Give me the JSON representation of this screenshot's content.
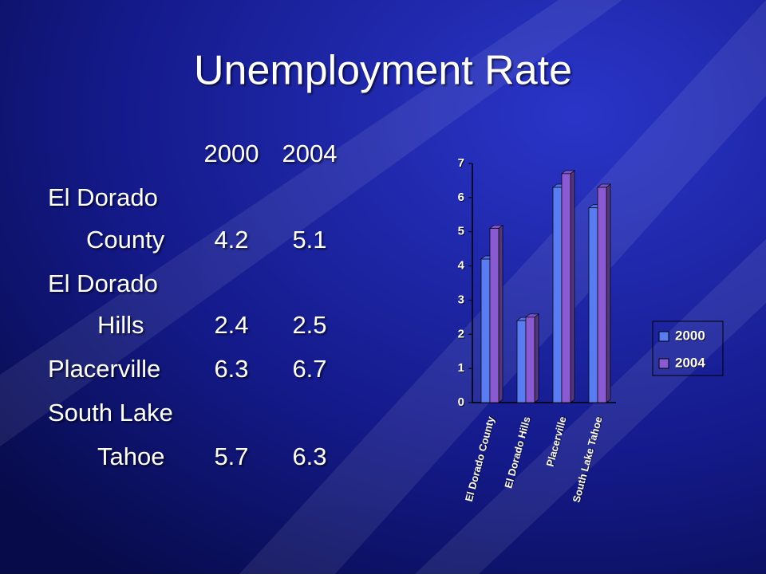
{
  "title": "Unemployment Rate",
  "table": {
    "header": [
      "2000",
      "2004"
    ],
    "rows": [
      {
        "label": [
          "El Dorado",
          "County"
        ],
        "values": [
          4.2,
          5.1
        ]
      },
      {
        "label": [
          "El Dorado",
          "Hills"
        ],
        "values": [
          2.4,
          2.5
        ]
      },
      {
        "label": [
          "Placerville"
        ],
        "values": [
          6.3,
          6.7
        ]
      },
      {
        "label": [
          "South Lake",
          "Tahoe"
        ],
        "values": [
          5.7,
          6.3
        ]
      }
    ]
  },
  "chart_data": {
    "type": "bar",
    "categories": [
      "El Dorado County",
      "El Dorado Hills",
      "Placerville",
      "South Lake Tahoe"
    ],
    "series": [
      {
        "name": "2000",
        "color": "#5a7cf2",
        "values": [
          4.2,
          2.4,
          6.3,
          5.7
        ]
      },
      {
        "name": "2004",
        "color": "#8a5ad2",
        "values": [
          5.1,
          2.5,
          6.7,
          6.3
        ]
      }
    ],
    "ylim": [
      0,
      7
    ],
    "yticks": [
      0,
      1,
      2,
      3,
      4,
      5,
      6,
      7
    ],
    "grid": false,
    "legend": "right"
  }
}
